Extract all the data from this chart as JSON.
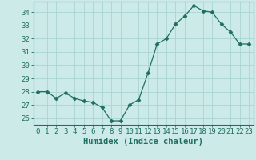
{
  "x": [
    0,
    1,
    2,
    3,
    4,
    5,
    6,
    7,
    8,
    9,
    10,
    11,
    12,
    13,
    14,
    15,
    16,
    17,
    18,
    19,
    20,
    21,
    22,
    23
  ],
  "y": [
    28.0,
    28.0,
    27.5,
    27.9,
    27.5,
    27.3,
    27.2,
    26.8,
    25.8,
    25.8,
    27.0,
    27.4,
    29.4,
    31.6,
    32.0,
    33.1,
    33.7,
    34.5,
    34.1,
    34.0,
    33.1,
    32.5,
    31.6,
    31.6
  ],
  "xlabel": "Humidex (Indice chaleur)",
  "xlim": [
    -0.5,
    23.5
  ],
  "ylim": [
    25.5,
    34.8
  ],
  "yticks": [
    26,
    27,
    28,
    29,
    30,
    31,
    32,
    33,
    34
  ],
  "xticks": [
    0,
    1,
    2,
    3,
    4,
    5,
    6,
    7,
    8,
    9,
    10,
    11,
    12,
    13,
    14,
    15,
    16,
    17,
    18,
    19,
    20,
    21,
    22,
    23
  ],
  "line_color": "#1f6f5e",
  "marker": "D",
  "marker_size": 2.5,
  "bg_color": "#cceae8",
  "grid_color": "#aad4d0",
  "axes_color": "#1f6f5e",
  "tick_label_fontsize": 6.5,
  "xlabel_fontsize": 7.5,
  "font_family": "monospace"
}
